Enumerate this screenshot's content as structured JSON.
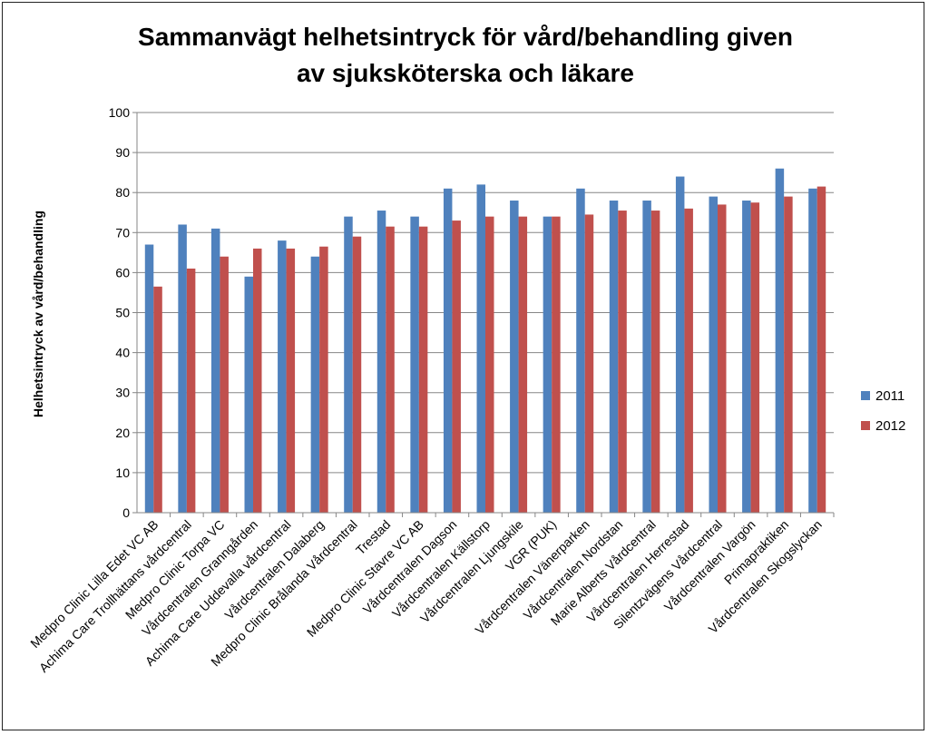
{
  "chart_data": {
    "type": "bar",
    "title_lines": [
      "Sammanvägt helhetsintryck för vård/behandling given",
      "av sjuksköterska och läkare"
    ],
    "ylabel": "Helhetsintryck av vård/behandling",
    "xlabel": "",
    "ylim": [
      0,
      100
    ],
    "yticks": [
      0,
      10,
      20,
      30,
      40,
      50,
      60,
      70,
      80,
      90,
      100
    ],
    "grid": true,
    "legend_position": "right",
    "categories": [
      "Medpro Clinic Lilla Edet VC AB",
      "Achima Care Trollhättans vårdcentral",
      "Medpro Clinic Torpa VC",
      "Vårdcentralen Granngården",
      "Achima Care Uddevalla vårdcentral",
      "Vårdcentralen Dalaberg",
      "Medpro Clinic Brålanda Vårdcentral",
      "Trestad",
      "Medpro Clinic Stavre VC AB",
      "Vårdcentralen Dagson",
      "Vårdcentralen Källstorp",
      "Vårdcentralen Ljungskile",
      "VGR (PUK)",
      "Vårdcentralen Vänerparken",
      "Vårdcentralen Nordstan",
      "Marie Alberts Vårdcentral",
      "Vårdcentralen Herrestad",
      "Silentzvägens Vårdcentral",
      "Vårdcentralen Vargön",
      "Primapraktiken",
      "Vårdcentralen Skogslyckan"
    ],
    "series": [
      {
        "name": "2011",
        "color": "#4F81BD",
        "values": [
          67,
          72,
          71,
          59,
          68,
          64,
          74,
          75.5,
          74,
          81,
          82,
          78,
          74,
          81,
          78,
          78,
          84,
          79,
          78,
          86,
          81
        ]
      },
      {
        "name": "2012",
        "color": "#C0504D",
        "values": [
          56.5,
          61,
          64,
          66,
          66,
          66.5,
          69,
          71.5,
          71.5,
          73,
          74,
          74,
          74,
          74.5,
          75.5,
          75.5,
          76,
          77,
          77.5,
          79,
          81.5
        ]
      }
    ]
  }
}
